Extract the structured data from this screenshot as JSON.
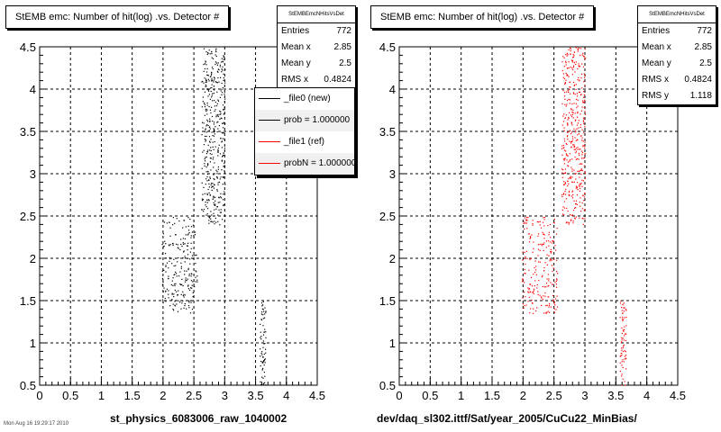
{
  "chart_data": [
    {
      "type": "scatter",
      "title": "StEMB emc: Number of hit(log) .vs. Detector #",
      "xlabel": "st_physics_6083006_raw_1040002",
      "ylabel": "",
      "xlim": [
        0,
        4.5
      ],
      "ylim": [
        0.5,
        4.5
      ],
      "x_ticks": [
        "0",
        "0.5",
        "1",
        "1.5",
        "2",
        "2.5",
        "3",
        "3.5",
        "4",
        "4.5"
      ],
      "y_ticks": [
        "0.5",
        "1",
        "1.5",
        "2",
        "2.5",
        "3",
        "3.5",
        "4",
        "4.5"
      ],
      "grid": true,
      "marker_color": "#000000",
      "clusters": [
        {
          "x": [
            2.62,
            3.0
          ],
          "y": [
            2.4,
            4.5
          ]
        },
        {
          "x": [
            1.98,
            2.55
          ],
          "y": [
            1.35,
            2.5
          ]
        },
        {
          "x": [
            3.56,
            3.66
          ],
          "y": [
            0.5,
            1.5
          ]
        }
      ],
      "stats": {
        "name": "StEMBEmcNHitsVsDet",
        "rows": [
          {
            "label": "Entries",
            "value": "772"
          },
          {
            "label": "Mean x",
            "value": "2.85"
          },
          {
            "label": "Mean y",
            "value": "2.5"
          },
          {
            "label": "RMS x",
            "value": "0.4824"
          }
        ]
      },
      "legend": {
        "position": "top-right",
        "entries": [
          {
            "label": "_file0 (new)",
            "color": "#000000"
          },
          {
            "label": "prob = 1.000000",
            "color": "#000000"
          },
          {
            "label": "_file1 (ref)",
            "color": "#ff0000"
          },
          {
            "label": "probN = 1.000000",
            "color": "#ff0000"
          }
        ]
      },
      "footer": "Mon Aug 16 19:29:17 2010"
    },
    {
      "type": "scatter",
      "title": "StEMB emc: Number of hit(log) .vs. Detector #",
      "xlabel": "dev/daq_sl302.ittf/Sat/year_2005/CuCu22_MinBias/",
      "ylabel": "",
      "xlim": [
        0,
        4.5
      ],
      "ylim": [
        0.5,
        4.5
      ],
      "x_ticks": [
        "0",
        "0.5",
        "1",
        "1.5",
        "2",
        "2.5",
        "3",
        "3.5",
        "4",
        "4.5"
      ],
      "y_ticks": [
        "0.5",
        "1",
        "1.5",
        "2",
        "2.5",
        "3",
        "3.5",
        "4",
        "4.5"
      ],
      "grid": true,
      "marker_color": "#ff0000",
      "clusters": [
        {
          "x": [
            2.62,
            3.0
          ],
          "y": [
            2.4,
            4.5
          ]
        },
        {
          "x": [
            1.98,
            2.55
          ],
          "y": [
            1.35,
            2.5
          ]
        },
        {
          "x": [
            3.56,
            3.66
          ],
          "y": [
            0.5,
            1.5
          ]
        }
      ],
      "stats": {
        "name": "StEMBEmcNHitsVsDet",
        "rows": [
          {
            "label": "Entries",
            "value": "772"
          },
          {
            "label": "Mean x",
            "value": "2.85"
          },
          {
            "label": "Mean y",
            "value": "2.5"
          },
          {
            "label": "RMS x",
            "value": "0.4824"
          },
          {
            "label": "RMS y",
            "value": "1.118"
          }
        ]
      }
    }
  ]
}
